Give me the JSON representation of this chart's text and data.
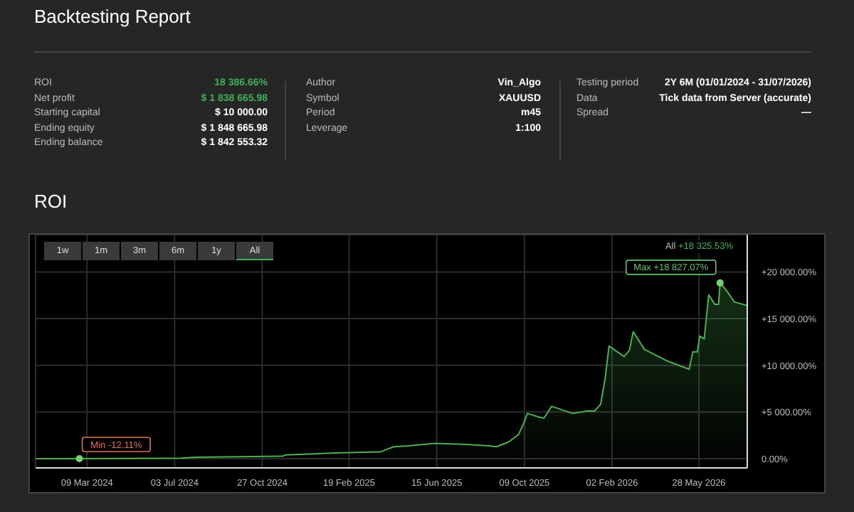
{
  "chart_data": {
    "type": "area",
    "title": "Backtesting Report",
    "subtitle": "ROI",
    "x": [
      "2024-01-01",
      "2024-02-28",
      "2024-07-12",
      "2024-07-31",
      "2024-11-23",
      "2024-11-27",
      "2025-01-31",
      "2025-04-01",
      "2025-04-19",
      "2025-05-08",
      "2025-06-12",
      "2025-07-20",
      "2025-08-24",
      "2025-09-02",
      "2025-09-18",
      "2025-10-01",
      "2025-10-07",
      "2025-10-13",
      "2025-10-29",
      "2025-11-04",
      "2025-11-14",
      "2025-12-12",
      "2025-12-31",
      "2026-01-10",
      "2026-01-18",
      "2026-01-24",
      "2026-01-29",
      "2026-02-18",
      "2026-02-25",
      "2026-03-02",
      "2026-03-17",
      "2026-03-29",
      "2026-04-17",
      "2026-05-12",
      "2026-05-15",
      "2026-05-20",
      "2026-05-26",
      "2026-05-29",
      "2026-06-04",
      "2026-06-10",
      "2026-06-18",
      "2026-06-23",
      "2026-06-25",
      "2026-07-03",
      "2026-07-14",
      "2026-07-31"
    ],
    "series": [
      {
        "color": "#4caf50",
        "values": [
          0,
          -12.11,
          50,
          150,
          250,
          400,
          610,
          710,
          1270,
          1370,
          1630,
          1530,
          1370,
          1270,
          1780,
          2550,
          3560,
          4840,
          4430,
          4330,
          5600,
          4840,
          5090,
          5090,
          5850,
          8650,
          12060,
          10940,
          11600,
          13590,
          11700,
          11200,
          10430,
          9670,
          9570,
          11450,
          11450,
          13130,
          12820,
          17560,
          16540,
          16540,
          18827.07,
          18070,
          16790,
          16390
        ]
      }
    ],
    "xlim": [
      "2024-01-01",
      "2026-07-31"
    ],
    "xticks": [
      {
        "value": "2024-03-09",
        "label": "09 Mar 2024"
      },
      {
        "value": "2024-07-03",
        "label": "03 Jul 2024"
      },
      {
        "value": "2024-10-27",
        "label": "27 Oct 2024"
      },
      {
        "value": "2025-02-19",
        "label": "19 Feb 2025"
      },
      {
        "value": "2025-06-15",
        "label": "15 Jun 2025"
      },
      {
        "value": "2025-10-09",
        "label": "09 Oct 2025"
      },
      {
        "value": "2026-02-02",
        "label": "02 Feb 2026"
      },
      {
        "value": "2026-05-28",
        "label": "28 May 2026"
      }
    ],
    "ylim": [
      -1000,
      24000
    ],
    "yticks": [
      {
        "value": 0,
        "label": "0.00%"
      },
      {
        "value": 5000,
        "label": "+5 000.00%"
      },
      {
        "value": 10000,
        "label": "+10 000.00%"
      },
      {
        "value": 15000,
        "label": "+15 000.00%"
      },
      {
        "value": 20000,
        "label": "+20 000.00%"
      }
    ],
    "grid": true,
    "legend": false,
    "marker": "none",
    "line_style": "solid",
    "annotations": [
      {
        "text": "Min -12.11%",
        "x": "2024-02-28",
        "y": -12.11
      },
      {
        "text": "Max +18 827.07%",
        "x": "2026-06-25",
        "y": 18827.07
      },
      "All",
      "+18 325.53%",
      "1w",
      "1m",
      "3m",
      "6m",
      "1y",
      "All",
      "ROI",
      "18 386.66%",
      "Net profit",
      "$ 1 838 665.98",
      "Starting capital",
      "$ 10 000.00",
      "Ending equity",
      "$ 1 848 665.98",
      "Ending balance",
      "$ 1 842 553.32",
      "Author",
      "Vin_Algo",
      "Symbol",
      "XAUUSD",
      "Period",
      "m45",
      "Leverage",
      "1:100",
      "Testing period",
      "2Y 6M (01/01/2024 - 31/07/2026)",
      "Data",
      "Tick data from Server (accurate)",
      "Spread",
      "—"
    ]
  }
}
